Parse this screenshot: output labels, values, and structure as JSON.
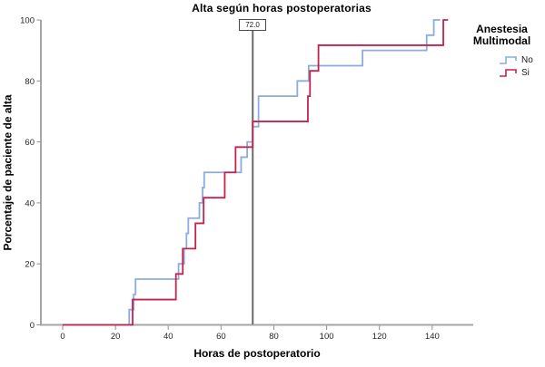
{
  "chart_data": {
    "type": "line",
    "subtype": "cumulative-step",
    "title": "Alta según horas postoperatorias",
    "xlabel": "Horas de postoperatorio",
    "ylabel": "Porcentaje de paciente de alta",
    "x_ticks": [
      0,
      20,
      40,
      60,
      80,
      100,
      120,
      140
    ],
    "y_ticks": [
      0,
      20,
      40,
      60,
      80,
      100
    ],
    "xlim": [
      -8,
      155
    ],
    "ylim": [
      0,
      100
    ],
    "grid": "off",
    "reference_line": {
      "x": 72,
      "label": "72.0"
    },
    "legend": {
      "position": "right",
      "title_lines": [
        "Anestesia",
        "Multimodal"
      ],
      "entries": [
        {
          "label": "No",
          "color": "#8aace0"
        },
        {
          "label": "Si",
          "color": "#c6234c"
        }
      ]
    },
    "series": [
      {
        "name": "No",
        "color": "#8aace0",
        "start": [
          0,
          0
        ],
        "end_x": 143,
        "events": [
          [
            25.2,
            5
          ],
          [
            26.9,
            10
          ],
          [
            27.6,
            15
          ],
          [
            43.9,
            20
          ],
          [
            46.0,
            25
          ],
          [
            46.9,
            30
          ],
          [
            47.6,
            35
          ],
          [
            51.8,
            40
          ],
          [
            53.0,
            45
          ],
          [
            53.6,
            50
          ],
          [
            67.6,
            55
          ],
          [
            69.9,
            60
          ],
          [
            72.0,
            65
          ],
          [
            74.2,
            75
          ],
          [
            88.9,
            80
          ],
          [
            93.2,
            85
          ],
          [
            113.6,
            90
          ],
          [
            137.9,
            95
          ],
          [
            140.6,
            100
          ]
        ]
      },
      {
        "name": "Si",
        "color": "#c6234c",
        "start": [
          0,
          0
        ],
        "end_x": 146,
        "events": [
          [
            26.5,
            8.3
          ],
          [
            42.9,
            16.7
          ],
          [
            45.5,
            25
          ],
          [
            50.3,
            33.3
          ],
          [
            53.4,
            41.7
          ],
          [
            61.4,
            50
          ],
          [
            65.5,
            58.3
          ],
          [
            72.0,
            66.7
          ],
          [
            92.9,
            75
          ],
          [
            93.7,
            83.3
          ],
          [
            96.9,
            91.7
          ],
          [
            144.2,
            100
          ]
        ]
      }
    ],
    "axis_color": "#a6a6a6",
    "tick_color": "#8c8c8c",
    "tick_label_color": "#262626",
    "reference_line_color": "#6b6b6b"
  }
}
